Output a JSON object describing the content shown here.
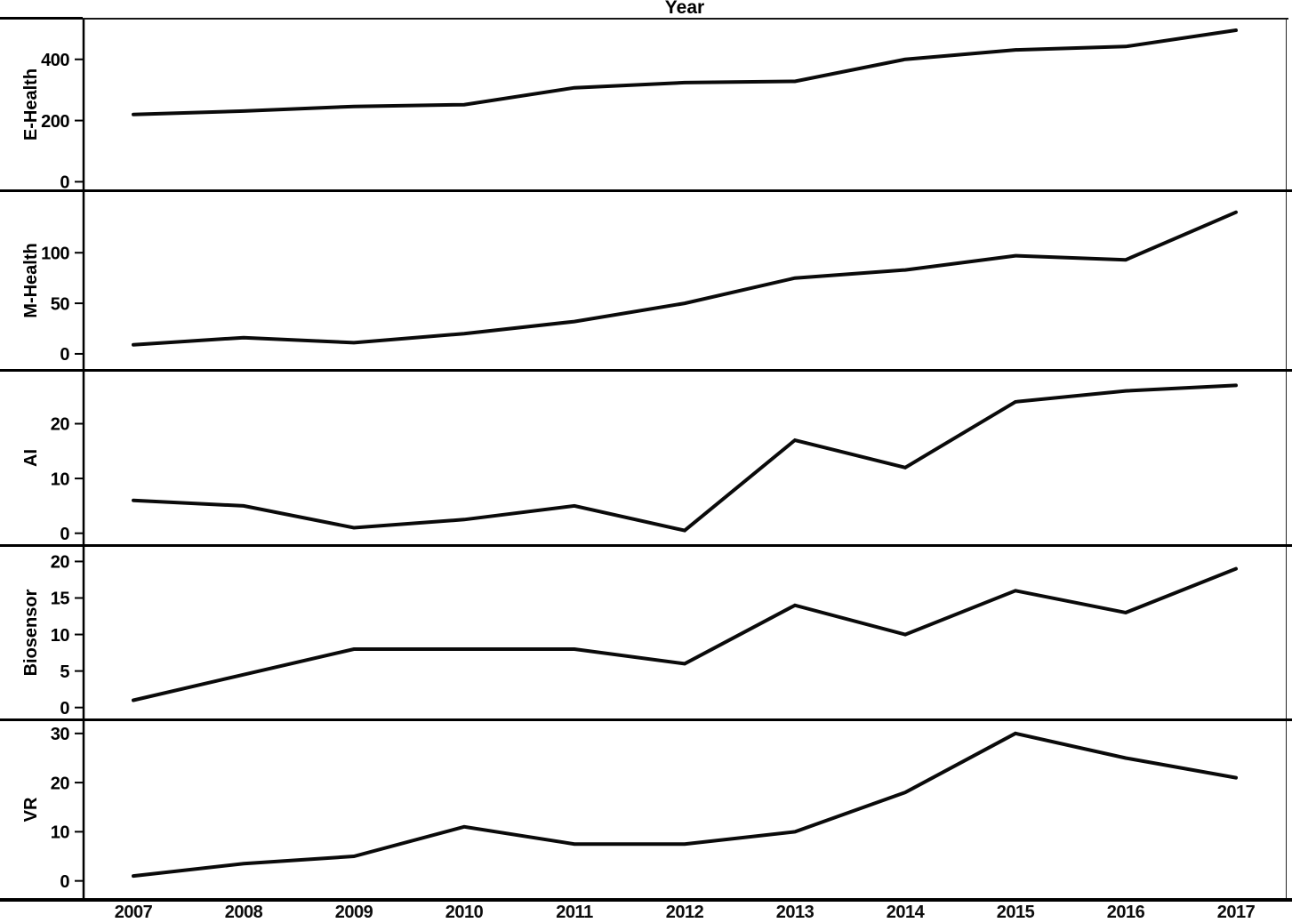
{
  "title": "Year",
  "x_tick_labels": [
    "2007",
    "2008",
    "2009",
    "2010",
    "2011",
    "2012",
    "2013",
    "2014",
    "2015",
    "2016",
    "2017"
  ],
  "chart_data": {
    "type": "line",
    "layout": "5 vertically stacked panels sharing one x-axis, single black series per panel, no grid, no legend",
    "x": [
      2007,
      2008,
      2009,
      2010,
      2011,
      2012,
      2013,
      2014,
      2015,
      2016,
      2017
    ],
    "xlim": [
      2006.6,
      2017.5
    ],
    "title": "Year",
    "line_color": "#0a0a0a",
    "panels": [
      {
        "label": "E-Health",
        "yticks": [
          0,
          200,
          400
        ],
        "ylim": [
          -25,
          530
        ],
        "values": [
          220,
          231,
          246,
          252,
          307,
          324,
          328,
          400,
          431,
          442,
          495
        ]
      },
      {
        "label": "M-Health",
        "yticks": [
          0,
          50,
          100
        ],
        "ylim": [
          -15,
          160
        ],
        "values": [
          9,
          16,
          11,
          20,
          32,
          50,
          75,
          83,
          97,
          93,
          140
        ]
      },
      {
        "label": "AI",
        "yticks": [
          0,
          10,
          20
        ],
        "ylim": [
          -2,
          29.5
        ],
        "values": [
          6,
          5,
          1,
          2.5,
          5,
          0.5,
          17,
          12,
          24,
          26,
          27
        ]
      },
      {
        "label": "Biosensor",
        "yticks": [
          0,
          5,
          10,
          15,
          20
        ],
        "ylim": [
          -1.5,
          22
        ],
        "values": [
          1,
          4.5,
          8,
          8,
          8,
          6,
          14,
          10,
          16,
          13,
          19
        ]
      },
      {
        "label": "VR",
        "yticks": [
          0,
          10,
          20,
          30
        ],
        "ylim": [
          -3.5,
          32.5
        ],
        "values": [
          1,
          3.5,
          5,
          11,
          7.5,
          7.5,
          10,
          18,
          30,
          25,
          21
        ]
      }
    ]
  }
}
